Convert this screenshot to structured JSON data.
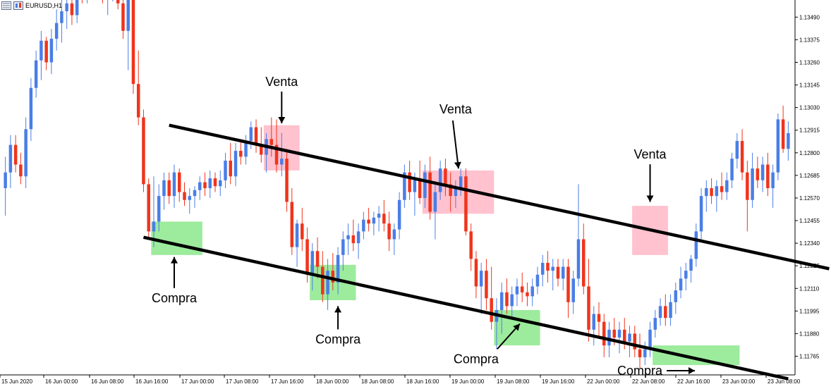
{
  "window": {
    "symbol_title": "EURUSD,H1",
    "icons": [
      "window-menu-icon",
      "chart-type-icon"
    ]
  },
  "colors": {
    "bull": "#4a7ee6",
    "bear": "#f0341c",
    "channel_line": "#000000",
    "sell_zone": "#ffb7c5",
    "buy_zone": "#8ce88c",
    "axis": "#000000"
  },
  "chart_data": {
    "type": "candlestick",
    "symbol": "EURUSD",
    "timeframe": "H1",
    "x_tick_labels": [
      "15 Jun 2020",
      "16 Jun 00:00",
      "16 Jun 08:00",
      "16 Jun 16:00",
      "17 Jun 00:00",
      "17 Jun 08:00",
      "17 Jun 16:00",
      "18 Jun 00:00",
      "18 Jun 08:00",
      "18 Jun 16:00",
      "19 Jun 00:00",
      "19 Jun 08:00",
      "19 Jun 16:00",
      "22 Jun 00:00",
      "22 Jun 08:00",
      "22 Jun 16:00",
      "23 Jun 00:00",
      "23 Jun 08:00"
    ],
    "y_tick_labels": [
      "1.13490",
      "1.13375",
      "1.13260",
      "1.13145",
      "1.13030",
      "1.12915",
      "1.12800",
      "1.12685",
      "1.12570",
      "1.12455",
      "1.12340",
      "1.12225",
      "1.12110",
      "1.11995",
      "1.11880",
      "1.11765"
    ],
    "y_ticks": [
      1.1349,
      1.13375,
      1.1326,
      1.13145,
      1.1303,
      1.12915,
      1.128,
      1.12685,
      1.1257,
      1.12455,
      1.1234,
      1.12225,
      1.1211,
      1.11995,
      1.1188,
      1.11765
    ],
    "ylim": [
      1.1167,
      1.1357
    ],
    "grid": false,
    "channel_lines": [
      {
        "role": "upper",
        "start": {
          "bar": 32,
          "price": 1.1294
        },
        "end": {
          "bar": 161,
          "price": 1.1221
        }
      },
      {
        "role": "lower",
        "start": {
          "bar": 27,
          "price": 1.1237
        },
        "end": {
          "bar": 153,
          "price": 1.1165
        }
      }
    ],
    "zones": [
      {
        "kind": "sell",
        "bar_from": 51,
        "bar_to": 57,
        "price_from": 1.1271,
        "price_to": 1.1294
      },
      {
        "kind": "sell",
        "bar_from": 82,
        "bar_to": 95,
        "price_from": 1.1249,
        "price_to": 1.1271
      },
      {
        "kind": "sell",
        "bar_from": 123,
        "bar_to": 129,
        "price_from": 1.1228,
        "price_to": 1.1253
      },
      {
        "kind": "buy",
        "bar_from": 29,
        "bar_to": 38,
        "price_from": 1.1228,
        "price_to": 1.1245
      },
      {
        "kind": "buy",
        "bar_from": 60,
        "bar_to": 68,
        "price_from": 1.1205,
        "price_to": 1.1223
      },
      {
        "kind": "buy",
        "bar_from": 96,
        "bar_to": 104,
        "price_from": 1.1182,
        "price_to": 1.12
      },
      {
        "kind": "buy",
        "bar_from": 127,
        "bar_to": 143,
        "price_from": 1.1172,
        "price_to": 1.1182
      }
    ],
    "annotations": [
      {
        "text": "Venta",
        "bar": 54,
        "price": 1.1314,
        "arrow_to_price": 1.1295
      },
      {
        "text": "Venta",
        "bar": 88,
        "price": 1.13,
        "arrow_to_price": 1.1272
      },
      {
        "text": "Venta",
        "bar": 126,
        "price": 1.1277,
        "arrow_to_price": 1.1255
      },
      {
        "text": "Compra",
        "bar": 33,
        "price": 1.1204,
        "arrow_to_price": 1.1227
      },
      {
        "text": "Compra",
        "bar": 65,
        "price": 1.1183,
        "arrow_to_price": 1.1202
      },
      {
        "text": "Compra",
        "bar": 92,
        "price": 1.1173,
        "arrow_to_price": 1.1193
      },
      {
        "text": "Compra",
        "bar": 124,
        "price": 1.1167,
        "arrow_to_price": 1.1168
      }
    ],
    "ohlc": [
      [
        1.1262,
        1.1278,
        1.1248,
        1.127
      ],
      [
        1.127,
        1.1289,
        1.1262,
        1.1284
      ],
      [
        1.1284,
        1.1289,
        1.127,
        1.1274
      ],
      [
        1.1274,
        1.128,
        1.1264,
        1.1268
      ],
      [
        1.1268,
        1.1298,
        1.1262,
        1.1292
      ],
      [
        1.1292,
        1.1318,
        1.1286,
        1.1313
      ],
      [
        1.1313,
        1.1332,
        1.1308,
        1.1327
      ],
      [
        1.1327,
        1.1342,
        1.1317,
        1.1337
      ],
      [
        1.1337,
        1.1339,
        1.1322,
        1.1326
      ],
      [
        1.1326,
        1.1343,
        1.132,
        1.1338
      ],
      [
        1.1338,
        1.1353,
        1.1332,
        1.1346
      ],
      [
        1.1346,
        1.1358,
        1.1336,
        1.1352
      ],
      [
        1.1352,
        1.1364,
        1.1343,
        1.1356
      ],
      [
        1.1356,
        1.1366,
        1.1345,
        1.135
      ],
      [
        1.135,
        1.1365,
        1.1346,
        1.1362
      ],
      [
        1.1362,
        1.1371,
        1.1356,
        1.136
      ],
      [
        1.136,
        1.1375,
        1.1356,
        1.1372
      ],
      [
        1.1372,
        1.1382,
        1.1362,
        1.1377
      ],
      [
        1.1377,
        1.1388,
        1.1366,
        1.137
      ],
      [
        1.137,
        1.138,
        1.1356,
        1.1358
      ],
      [
        1.1358,
        1.1373,
        1.135,
        1.1364
      ],
      [
        1.1364,
        1.1377,
        1.1357,
        1.1373
      ],
      [
        1.1373,
        1.1392,
        1.1353,
        1.1356
      ],
      [
        1.1356,
        1.137,
        1.1338,
        1.1342
      ],
      [
        1.1342,
        1.1364,
        1.1322,
        1.136
      ],
      [
        1.136,
        1.136,
        1.131,
        1.1315
      ],
      [
        1.1315,
        1.1332,
        1.1294,
        1.1298
      ],
      [
        1.1298,
        1.1302,
        1.126,
        1.1264
      ],
      [
        1.1264,
        1.1267,
        1.1236,
        1.124
      ],
      [
        1.124,
        1.1268,
        1.1232,
        1.1245
      ],
      [
        1.1245,
        1.1264,
        1.124,
        1.1258
      ],
      [
        1.1258,
        1.127,
        1.1251,
        1.1266
      ],
      [
        1.1266,
        1.127,
        1.1254,
        1.1258
      ],
      [
        1.1258,
        1.1274,
        1.1252,
        1.127
      ],
      [
        1.127,
        1.1272,
        1.1255,
        1.126
      ],
      [
        1.126,
        1.1265,
        1.1253,
        1.1256
      ],
      [
        1.1256,
        1.1262,
        1.1249,
        1.1258
      ],
      [
        1.1258,
        1.1263,
        1.1252,
        1.1261
      ],
      [
        1.1261,
        1.1268,
        1.1256,
        1.1265
      ],
      [
        1.1265,
        1.127,
        1.1258,
        1.1262
      ],
      [
        1.1262,
        1.1271,
        1.1257,
        1.1267
      ],
      [
        1.1267,
        1.127,
        1.126,
        1.1263
      ],
      [
        1.1263,
        1.1271,
        1.1258,
        1.1266
      ],
      [
        1.1266,
        1.128,
        1.1262,
        1.1276
      ],
      [
        1.1276,
        1.1285,
        1.1264,
        1.1268
      ],
      [
        1.1268,
        1.1285,
        1.1263,
        1.1281
      ],
      [
        1.1281,
        1.1286,
        1.1274,
        1.1278
      ],
      [
        1.1278,
        1.1289,
        1.1274,
        1.1286
      ],
      [
        1.1286,
        1.1296,
        1.1282,
        1.1293
      ],
      [
        1.1293,
        1.1297,
        1.128,
        1.1284
      ],
      [
        1.1284,
        1.1293,
        1.1275,
        1.1279
      ],
      [
        1.1279,
        1.129,
        1.127,
        1.1287
      ],
      [
        1.1287,
        1.1298,
        1.1278,
        1.1284
      ],
      [
        1.1284,
        1.1297,
        1.127,
        1.1274
      ],
      [
        1.1274,
        1.129,
        1.1268,
        1.1277
      ],
      [
        1.1277,
        1.1282,
        1.125,
        1.1255
      ],
      [
        1.1255,
        1.1262,
        1.1228,
        1.1232
      ],
      [
        1.1232,
        1.1246,
        1.1222,
        1.1244
      ],
      [
        1.1244,
        1.1252,
        1.123,
        1.1236
      ],
      [
        1.1236,
        1.1242,
        1.1214,
        1.1218
      ],
      [
        1.1218,
        1.1234,
        1.121,
        1.123
      ],
      [
        1.123,
        1.1237,
        1.1216,
        1.1222
      ],
      [
        1.1222,
        1.123,
        1.1204,
        1.1208
      ],
      [
        1.1208,
        1.1226,
        1.12,
        1.122
      ],
      [
        1.122,
        1.1229,
        1.121,
        1.1214
      ],
      [
        1.1214,
        1.1232,
        1.1208,
        1.1228
      ],
      [
        1.1228,
        1.124,
        1.122,
        1.1236
      ],
      [
        1.1236,
        1.1244,
        1.1228,
        1.1238
      ],
      [
        1.1238,
        1.1246,
        1.123,
        1.1234
      ],
      [
        1.1234,
        1.1244,
        1.1226,
        1.124
      ],
      [
        1.124,
        1.125,
        1.1236,
        1.1246
      ],
      [
        1.1246,
        1.1252,
        1.124,
        1.1244
      ],
      [
        1.1244,
        1.125,
        1.1238,
        1.1247
      ],
      [
        1.1247,
        1.1253,
        1.124,
        1.1249
      ],
      [
        1.1249,
        1.1256,
        1.124,
        1.1244
      ],
      [
        1.1244,
        1.125,
        1.123,
        1.1236
      ],
      [
        1.1236,
        1.1244,
        1.1228,
        1.1241
      ],
      [
        1.1241,
        1.126,
        1.1236,
        1.1256
      ],
      [
        1.1256,
        1.1274,
        1.1252,
        1.127
      ],
      [
        1.127,
        1.1276,
        1.1256,
        1.126
      ],
      [
        1.126,
        1.127,
        1.1248,
        1.1266
      ],
      [
        1.1266,
        1.1276,
        1.1254,
        1.1257
      ],
      [
        1.1257,
        1.1274,
        1.1252,
        1.127
      ],
      [
        1.127,
        1.1278,
        1.1246,
        1.125
      ],
      [
        1.125,
        1.1264,
        1.1236,
        1.126
      ],
      [
        1.126,
        1.1276,
        1.1256,
        1.1272
      ],
      [
        1.1272,
        1.1277,
        1.1258,
        1.1264
      ],
      [
        1.1264,
        1.127,
        1.125,
        1.1258
      ],
      [
        1.1258,
        1.1266,
        1.1252,
        1.1262
      ],
      [
        1.1262,
        1.1272,
        1.1258,
        1.1268
      ],
      [
        1.1268,
        1.1272,
        1.1238,
        1.124
      ],
      [
        1.124,
        1.1244,
        1.122,
        1.1226
      ],
      [
        1.1226,
        1.123,
        1.1206,
        1.1212
      ],
      [
        1.1212,
        1.1224,
        1.1198,
        1.122
      ],
      [
        1.122,
        1.1226,
        1.12,
        1.1206
      ],
      [
        1.1206,
        1.1222,
        1.119,
        1.1194
      ],
      [
        1.1194,
        1.1206,
        1.118,
        1.12
      ],
      [
        1.12,
        1.1214,
        1.1188,
        1.1209
      ],
      [
        1.1209,
        1.1216,
        1.1198,
        1.1202
      ],
      [
        1.1202,
        1.1212,
        1.1196,
        1.1208
      ],
      [
        1.1208,
        1.1216,
        1.1202,
        1.1212
      ],
      [
        1.1212,
        1.1219,
        1.1204,
        1.1209
      ],
      [
        1.1209,
        1.1214,
        1.1202,
        1.1207
      ],
      [
        1.1207,
        1.1216,
        1.1202,
        1.1212
      ],
      [
        1.1212,
        1.1222,
        1.1208,
        1.1218
      ],
      [
        1.1218,
        1.1228,
        1.1212,
        1.1224
      ],
      [
        1.1224,
        1.123,
        1.1214,
        1.122
      ],
      [
        1.122,
        1.1226,
        1.121,
        1.1222
      ],
      [
        1.1222,
        1.1226,
        1.1212,
        1.1216
      ],
      [
        1.1216,
        1.1226,
        1.121,
        1.1222
      ],
      [
        1.1222,
        1.1226,
        1.1196,
        1.1204
      ],
      [
        1.1204,
        1.122,
        1.1198,
        1.1216
      ],
      [
        1.1216,
        1.1264,
        1.1212,
        1.1236
      ],
      [
        1.1236,
        1.1244,
        1.1208,
        1.1212
      ],
      [
        1.1212,
        1.1226,
        1.1184,
        1.119
      ],
      [
        1.119,
        1.1202,
        1.1182,
        1.1198
      ],
      [
        1.1198,
        1.1204,
        1.1186,
        1.1194
      ],
      [
        1.1194,
        1.1198,
        1.1176,
        1.1182
      ],
      [
        1.1182,
        1.1194,
        1.1176,
        1.119
      ],
      [
        1.119,
        1.1196,
        1.1182,
        1.1186
      ],
      [
        1.1186,
        1.1194,
        1.1178,
        1.119
      ],
      [
        1.119,
        1.1196,
        1.118,
        1.1184
      ],
      [
        1.1184,
        1.1192,
        1.1176,
        1.1188
      ],
      [
        1.1188,
        1.1192,
        1.1176,
        1.118
      ],
      [
        1.118,
        1.1188,
        1.117,
        1.1176
      ],
      [
        1.1176,
        1.1184,
        1.1172,
        1.118
      ],
      [
        1.118,
        1.1194,
        1.1176,
        1.119
      ],
      [
        1.119,
        1.12,
        1.1186,
        1.1196
      ],
      [
        1.1196,
        1.1206,
        1.1192,
        1.1202
      ],
      [
        1.1202,
        1.1208,
        1.1192,
        1.1196
      ],
      [
        1.1196,
        1.1208,
        1.1192,
        1.1204
      ],
      [
        1.1204,
        1.1214,
        1.1198,
        1.121
      ],
      [
        1.121,
        1.1222,
        1.1206,
        1.1216
      ],
      [
        1.1216,
        1.1224,
        1.121,
        1.122
      ],
      [
        1.122,
        1.1228,
        1.1214,
        1.1226
      ],
      [
        1.1226,
        1.1244,
        1.1222,
        1.124
      ],
      [
        1.124,
        1.1262,
        1.1236,
        1.1258
      ],
      [
        1.1258,
        1.1266,
        1.125,
        1.1262
      ],
      [
        1.1262,
        1.1267,
        1.1254,
        1.1258
      ],
      [
        1.1258,
        1.1266,
        1.125,
        1.1263
      ],
      [
        1.1263,
        1.127,
        1.1256,
        1.126
      ],
      [
        1.126,
        1.127,
        1.1256,
        1.1266
      ],
      [
        1.1266,
        1.128,
        1.1262,
        1.1277
      ],
      [
        1.1277,
        1.129,
        1.1272,
        1.1286
      ],
      [
        1.1286,
        1.1292,
        1.1266,
        1.127
      ],
      [
        1.127,
        1.1276,
        1.124,
        1.1256
      ],
      [
        1.1256,
        1.128,
        1.1252,
        1.1272
      ],
      [
        1.1272,
        1.1278,
        1.1262,
        1.1266
      ],
      [
        1.1266,
        1.1278,
        1.126,
        1.1274
      ],
      [
        1.1274,
        1.128,
        1.1258,
        1.1262
      ],
      [
        1.1262,
        1.1274,
        1.1252,
        1.127
      ],
      [
        1.127,
        1.13,
        1.1266,
        1.1297
      ],
      [
        1.1297,
        1.1304,
        1.128,
        1.1282
      ],
      [
        1.1282,
        1.1296,
        1.1276,
        1.129
      ]
    ]
  }
}
